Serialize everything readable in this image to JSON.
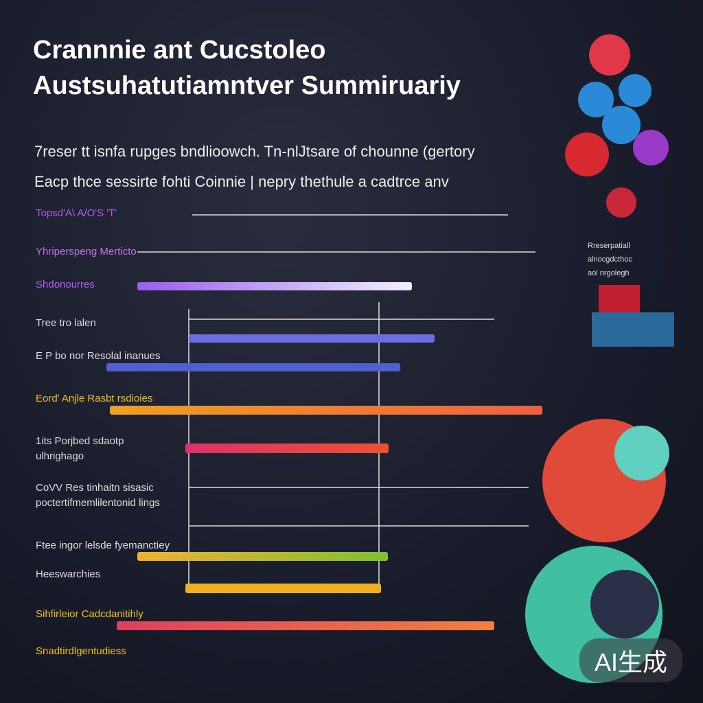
{
  "header": {
    "title_lines": [
      "Crannnie ant Cucstoleo",
      "Austsuhatutiamntver Summiruariy"
    ],
    "intro_lines": [
      "7reser tt isnfa rupges bndlioowch. Tn-nlJtsare of chounne (gertory",
      "Eacp thce sessirte fohti Coinnie | nepry thethule a cadtrce anv"
    ]
  },
  "rows": [
    {
      "label": [
        "Topsd'A\\ A/O'S 'T'"
      ]
    },
    {
      "label": [
        "Yhriperspeng Merticto"
      ]
    },
    {
      "label": [
        "Shdonourres"
      ]
    },
    {
      "label": [
        "Tree tro lalen"
      ]
    },
    {
      "label": [
        "E P bo nor Resolal inanues"
      ]
    },
    {
      "label": [
        "Eord' Anjle Rasbt rsdioies"
      ]
    },
    {
      "label": [
        "1its Porjbed sdaotp",
        "ulhrighago"
      ]
    },
    {
      "label": [
        "CoVV Res tinhaitn sisasic",
        "poctertifmemlilentonid lings"
      ]
    },
    {
      "label": [
        "Ftee ingor lelsde fyemanctiey"
      ]
    },
    {
      "label": [
        "Heeswarchies"
      ]
    },
    {
      "label": [
        "Sihfirleior Cadcdanitihly"
      ]
    },
    {
      "label": [
        "Snadtirdlgentudiess"
      ]
    }
  ],
  "side_note": [
    "Rreserpatiall",
    "alnocgdcthoc",
    "aol nrgolegh"
  ],
  "watermark": "AI生成"
}
